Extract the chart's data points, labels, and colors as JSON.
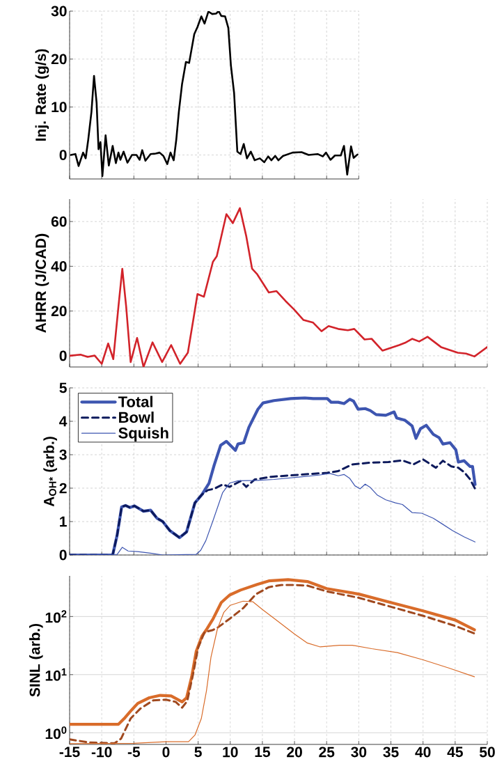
{
  "chart_data": [
    {
      "type": "line",
      "ylabel": "Inj. Rate (g/s)",
      "xlim": [
        -15,
        30
      ],
      "xticks": [
        -15,
        -10,
        -5,
        0,
        5,
        10,
        15,
        20,
        25,
        30
      ],
      "ylim": [
        -5,
        30
      ],
      "yticks": [
        0,
        10,
        20,
        30
      ],
      "grid": true,
      "tick_labels": "y",
      "series": [
        {
          "color": "#000000",
          "x": [
            -14.8,
            -14.1,
            -13.6,
            -12.9,
            -12.5,
            -12.1,
            -11.6,
            -11.2,
            -10.8,
            -10.5,
            -10.2,
            -9.9,
            -9.4,
            -8.9,
            -8.3,
            -7.8,
            -7.4,
            -7.1,
            -6.6,
            -6.0,
            -5.3,
            -4.6,
            -4.1,
            -3.7,
            -3.2,
            -2.4,
            -1.6,
            -1.0,
            -0.4,
            0.2,
            0.7,
            1.2,
            1.6,
            2.0,
            2.5,
            3.1,
            3.6,
            4.4,
            4.9,
            5.5,
            6.0,
            6.6,
            7.2,
            7.8,
            8.2,
            8.6,
            9.2,
            9.7,
            10.1,
            10.6,
            11.1,
            11.6,
            12.1,
            12.6,
            13.2,
            13.8,
            14.6,
            15.3,
            15.9,
            16.4,
            17.0,
            17.5,
            18.2,
            19.7,
            21.1,
            22.2,
            23.6,
            24.4,
            24.9,
            25.6,
            26.3,
            27.2,
            27.7,
            28.2,
            28.8,
            29.2,
            29.8
          ],
          "values": [
            0,
            0.2,
            -2.3,
            0.5,
            -0.7,
            3.2,
            9,
            16.5,
            10.9,
            1.2,
            2.7,
            -4.4,
            4.1,
            -2.2,
            1.9,
            -1.7,
            0.5,
            -1.0,
            0.7,
            -1.6,
            0,
            0,
            -1.0,
            1.0,
            -1.2,
            0.2,
            0.3,
            0.5,
            -0.2,
            -1.9,
            0.5,
            -1.1,
            3.2,
            9,
            14.8,
            19.4,
            19.2,
            25.2,
            26.7,
            28.9,
            27.4,
            29.9,
            29.4,
            29.5,
            30,
            29,
            28.9,
            26.5,
            18.7,
            12.9,
            0.7,
            0.2,
            2.3,
            -0.7,
            0.7,
            -1.1,
            -0.7,
            -1.5,
            -0.3,
            -1.1,
            -0.2,
            -1.1,
            -0.2,
            0.5,
            0.6,
            0,
            0.2,
            -0.3,
            0.5,
            -1.0,
            -0.1,
            -0.1,
            1.9,
            -4.1,
            1.8,
            -0.6,
            0.1
          ]
        }
      ]
    },
    {
      "type": "line",
      "ylabel": "AHRR (J/CAD)",
      "xlim": [
        -15,
        50
      ],
      "xticks": [
        -15,
        -10,
        -5,
        0,
        5,
        10,
        15,
        20,
        25,
        30,
        35,
        40,
        45,
        50
      ],
      "ylim": [
        -5,
        70
      ],
      "yticks": [
        0,
        20,
        40,
        60
      ],
      "grid": true,
      "tick_labels": "y",
      "series": [
        {
          "color": "#d2232a",
          "x": [
            -15,
            -13.3,
            -12.2,
            -11.1,
            -10.0,
            -9.0,
            -8.2,
            -7.4,
            -6.8,
            -6.2,
            -5.5,
            -4.5,
            -3.5,
            -2.1,
            -0.6,
            0.8,
            2.2,
            3.4,
            4.3,
            4.9,
            5.9,
            7.3,
            7.9,
            9.4,
            10.4,
            11.5,
            12.5,
            13.4,
            14.2,
            16.0,
            17.2,
            18.6,
            19.9,
            21.4,
            22.9,
            24.2,
            25.3,
            26.8,
            28.3,
            29.3,
            30.9,
            32.0,
            33.7,
            36.3,
            37.2,
            38.3,
            39.4,
            40.7,
            42.8,
            45.4,
            46.7,
            48.0,
            50.0
          ],
          "values": [
            0,
            0.5,
            -0.5,
            0.1,
            -3.6,
            5.5,
            -1.5,
            22,
            38.9,
            22,
            -2.8,
            8,
            -5,
            6,
            -2.8,
            4.8,
            -3.6,
            1.4,
            17,
            27.6,
            26.4,
            42,
            44.5,
            63.3,
            59.3,
            66,
            53.3,
            38.9,
            36.4,
            28.3,
            28.9,
            24.5,
            20.8,
            16,
            14.8,
            11,
            13.3,
            12,
            11.4,
            12,
            7.3,
            7.6,
            2.3,
            4.8,
            5.8,
            7.6,
            6.4,
            8.5,
            3.9,
            1.4,
            1.0,
            -0.3,
            3.9
          ]
        }
      ]
    },
    {
      "type": "line",
      "ylabel": "A$_{OH*}$ (arb.)",
      "xlim": [
        -15,
        50
      ],
      "xticks": [
        -15,
        -10,
        -5,
        0,
        5,
        10,
        15,
        20,
        25,
        30,
        35,
        40,
        45,
        50
      ],
      "ylim": [
        0,
        5
      ],
      "yticks": [
        0,
        1,
        2,
        3,
        4,
        5
      ],
      "grid": true,
      "tick_labels": "y",
      "legend": "top left",
      "series": [
        {
          "name": "Total",
          "color": "#3d55b0",
          "line_style": "solid",
          "x": [
            -15,
            -8.3,
            -7.6,
            -6.9,
            -6.3,
            -5.6,
            -4.9,
            -3.5,
            -2.4,
            -1.4,
            -0.5,
            0.6,
            2.1,
            3.2,
            4.5,
            5.6,
            6.7,
            7.5,
            8.5,
            9.4,
            10.8,
            11.2,
            12.1,
            12.9,
            14.3,
            15.1,
            16.8,
            19.4,
            21.6,
            22.9,
            25.1,
            25.7,
            26.8,
            27.7,
            28.6,
            29.2,
            29.9,
            31.0,
            31.8,
            32.7,
            34.2,
            35.5,
            35.9,
            37.2,
            38.3,
            38.9,
            39.6,
            40.5,
            41.6,
            42.5,
            43.1,
            44.2,
            45.1,
            45.5,
            46.4,
            47.3,
            47.7,
            48.1
          ],
          "values": [
            0,
            0,
            0.6,
            1.44,
            1.48,
            1.42,
            1.47,
            1.31,
            1.34,
            1.1,
            1.0,
            0.73,
            0.52,
            0.69,
            1.56,
            1.81,
            2.15,
            2.69,
            3.28,
            3.4,
            3.13,
            3.32,
            3.36,
            3.82,
            4.36,
            4.55,
            4.62,
            4.68,
            4.7,
            4.68,
            4.68,
            4.57,
            4.57,
            4.53,
            4.66,
            4.6,
            4.36,
            4.38,
            4.32,
            4.2,
            4.18,
            4.28,
            4.1,
            4.03,
            3.86,
            3.49,
            3.78,
            3.88,
            3.61,
            3.51,
            3.32,
            3.36,
            3.15,
            2.78,
            2.82,
            2.65,
            2.65,
            2.11
          ]
        },
        {
          "name": "Bowl",
          "color": "#0d1a5c",
          "line_style": "dashed",
          "x": [
            -15,
            -8.3,
            -7.6,
            -6.9,
            -6.3,
            -5.6,
            -4.9,
            -3.5,
            -2.4,
            -1.4,
            -0.5,
            0.6,
            2.1,
            3.2,
            4.5,
            5.6,
            6.5,
            7.5,
            8.8,
            9.9,
            11.6,
            12.5,
            13.8,
            16.4,
            20.7,
            25.1,
            26.8,
            29.0,
            31.6,
            34.6,
            36.8,
            38.5,
            40.0,
            42.0,
            43.1,
            44.4,
            45.5,
            46.4,
            47.3,
            48.1
          ],
          "values": [
            0,
            0,
            0.6,
            1.44,
            1.48,
            1.42,
            1.47,
            1.31,
            1.34,
            1.1,
            1.0,
            0.73,
            0.52,
            0.69,
            1.56,
            1.81,
            1.94,
            1.98,
            2.11,
            2.04,
            2.21,
            2.04,
            2.26,
            2.34,
            2.4,
            2.46,
            2.51,
            2.71,
            2.76,
            2.78,
            2.83,
            2.71,
            2.86,
            2.61,
            2.82,
            2.65,
            2.61,
            2.48,
            2.27,
            1.98
          ]
        },
        {
          "name": "Squish",
          "color": "#3d55b0",
          "line_style": "solid",
          "x": [
            -15,
            -7.6,
            -6.8,
            -5.9,
            -4.4,
            -2.2,
            -0.5,
            4.7,
            5.4,
            6.2,
            7.3,
            8.8,
            9.9,
            11.2,
            14.2,
            16.8,
            21.2,
            23.8,
            25.5,
            26.8,
            27.7,
            28.6,
            29.4,
            30.2,
            31.0,
            31.8,
            32.9,
            34.2,
            35.7,
            36.8,
            38.3,
            39.8,
            41.6,
            42.9,
            44.6,
            46.4,
            48.1
          ],
          "values": [
            0,
            0.02,
            0.23,
            0.12,
            0.1,
            0.05,
            0,
            0.02,
            0.14,
            0.43,
            1.02,
            1.86,
            2.15,
            2.22,
            2.23,
            2.26,
            2.34,
            2.39,
            2.44,
            2.37,
            2.41,
            2.29,
            2.07,
            1.98,
            2.12,
            2.02,
            1.79,
            1.65,
            1.56,
            1.51,
            1.27,
            1.25,
            1.1,
            0.94,
            0.73,
            0.54,
            0.39
          ]
        }
      ]
    },
    {
      "type": "line",
      "ylabel": "SINL (arb.)",
      "log": "y",
      "xlim": [
        -15,
        50
      ],
      "xticks": [
        -15,
        -10,
        -5,
        0,
        5,
        10,
        15,
        20,
        25,
        30,
        35,
        40,
        45,
        50
      ],
      "ylim": [
        0.63,
        500
      ],
      "yticks": [
        {
          "value": 1,
          "label": "10$^{0}$"
        },
        {
          "value": 10,
          "label": "10$^{1}$"
        },
        {
          "value": 100,
          "label": "10$^{2}$"
        }
      ],
      "grid": true,
      "series": [
        {
          "color": "#d96c2a",
          "line_style": "solid",
          "x": [
            -15,
            -7.4,
            -6.5,
            -5.6,
            -4.4,
            -2.6,
            -0.9,
            0.8,
            1.7,
            2.5,
            3.2,
            4.0,
            4.7,
            5.6,
            6.4,
            7.3,
            8.6,
            9.9,
            11.6,
            14.2,
            16.0,
            19.0,
            22.0,
            25.0,
            30.0,
            35.0,
            40.0,
            45.0,
            48.0
          ],
          "values": [
            1.4,
            1.4,
            1.76,
            2.3,
            3.2,
            4.0,
            4.4,
            4.3,
            3.8,
            3.4,
            4.0,
            9.2,
            25,
            46,
            62,
            90,
            174,
            234,
            285,
            357,
            410,
            430,
            400,
            302,
            243,
            174,
            125,
            87,
            59
          ]
        },
        {
          "color": "#a0491f",
          "line_style": "dashed",
          "x": [
            -15,
            -12,
            -8,
            -7,
            -5.5,
            -4,
            -2,
            0,
            1.5,
            2.5,
            3.3,
            4.2,
            5,
            6,
            7.2,
            8,
            10,
            12,
            14,
            16,
            18,
            20,
            22,
            25,
            30,
            35,
            40,
            45,
            48
          ],
          "values": [
            0.77,
            0.68,
            0.66,
            0.79,
            1.76,
            2.6,
            3.6,
            3.7,
            3.4,
            2.7,
            3.5,
            10,
            29,
            54,
            58,
            64,
            93,
            139,
            242,
            320,
            350,
            350,
            340,
            271,
            210,
            147,
            103,
            69,
            51
          ]
        },
        {
          "color": "#d96c2a",
          "line_style": "solid",
          "x": [
            -15,
            -5,
            0,
            3.5,
            4.5,
            5.5,
            6.3,
            7,
            8,
            9,
            10,
            12,
            13.5,
            15,
            17,
            20,
            22,
            24,
            27,
            29,
            32,
            36,
            40,
            44,
            48
          ],
          "values": [
            0.65,
            0.66,
            0.7,
            0.7,
            0.91,
            1.76,
            5.3,
            20,
            61,
            118,
            156,
            184,
            180,
            132,
            90,
            50,
            35,
            30,
            32,
            32,
            28,
            24,
            18,
            13,
            9.2
          ]
        }
      ]
    }
  ]
}
